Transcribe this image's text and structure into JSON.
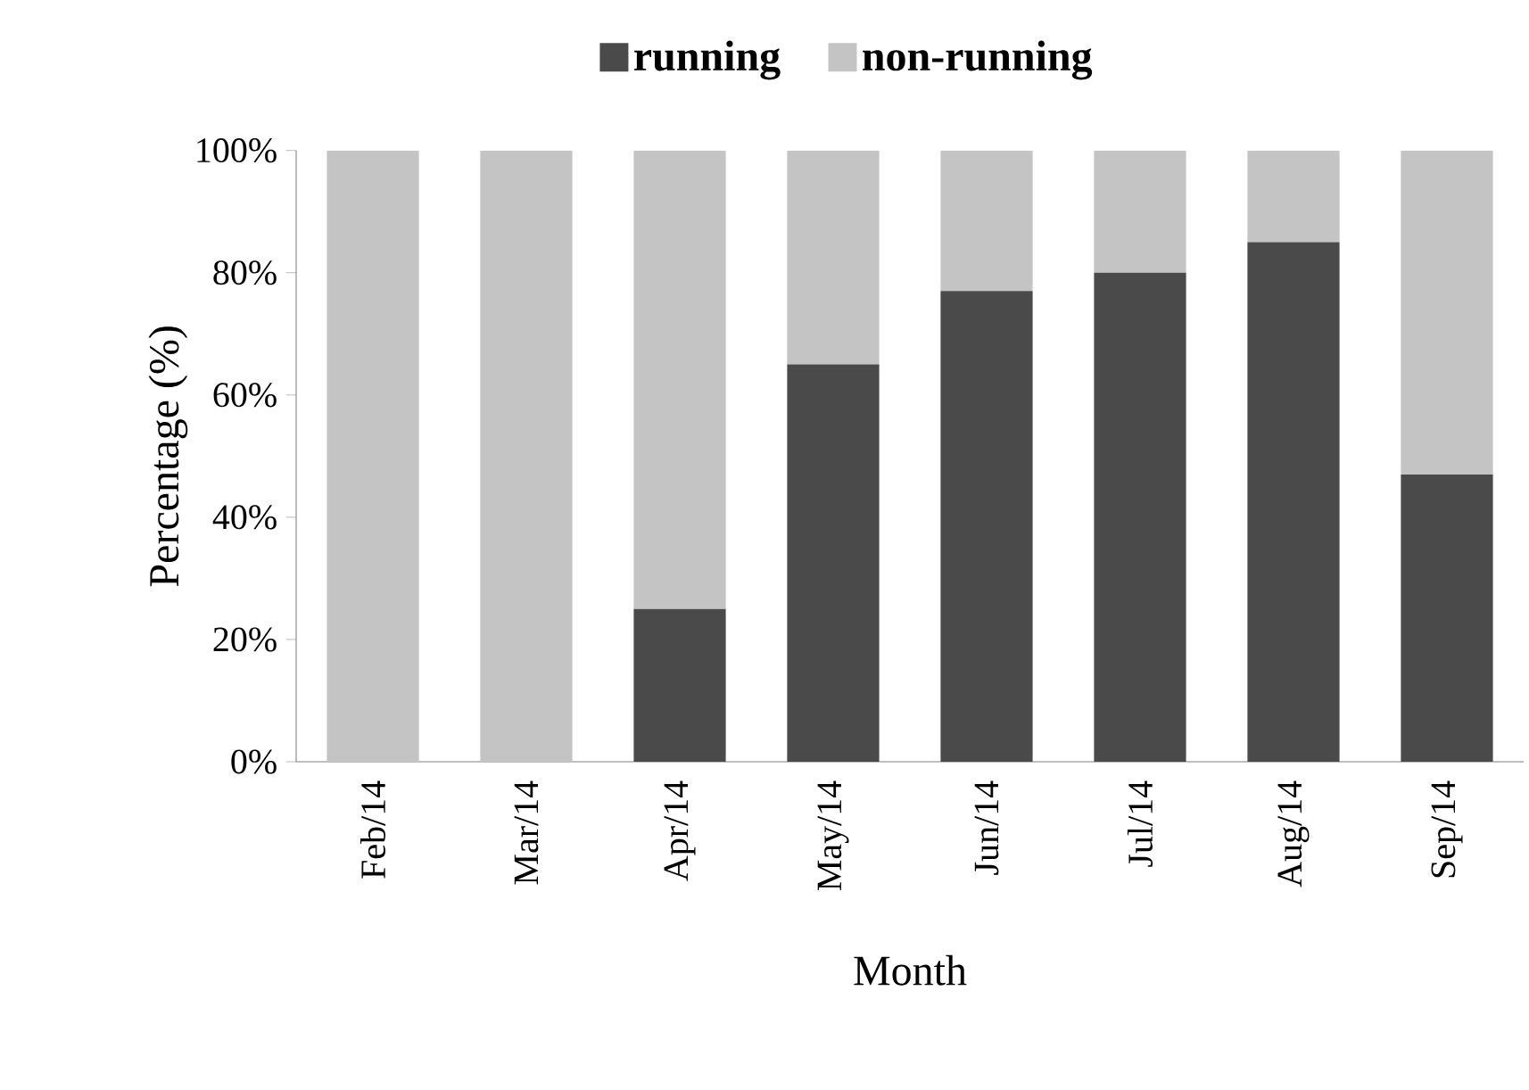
{
  "chart_data": {
    "type": "bar",
    "stacked": true,
    "xlabel": "Month",
    "ylabel": "Percentage (%)",
    "categories": [
      "Feb/14",
      "Mar/14",
      "Apr/14",
      "May/14",
      "Jun/14",
      "Jul/14",
      "Aug/14",
      "Sep/14"
    ],
    "series": [
      {
        "name": "running",
        "color": "#4a4a4a",
        "values": [
          0,
          0,
          25,
          65,
          77,
          80,
          85,
          47
        ]
      },
      {
        "name": "non-running",
        "color": "#c4c4c4",
        "values": [
          100,
          100,
          75,
          35,
          23,
          20,
          15,
          53
        ]
      }
    ],
    "ylim": [
      0,
      100
    ],
    "yticks": [
      {
        "value": 0,
        "label": "0%"
      },
      {
        "value": 20,
        "label": "20%"
      },
      {
        "value": 40,
        "label": "40%"
      },
      {
        "value": 60,
        "label": "60%"
      },
      {
        "value": 80,
        "label": "80%"
      },
      {
        "value": 100,
        "label": "100%"
      }
    ],
    "legend": "top"
  }
}
